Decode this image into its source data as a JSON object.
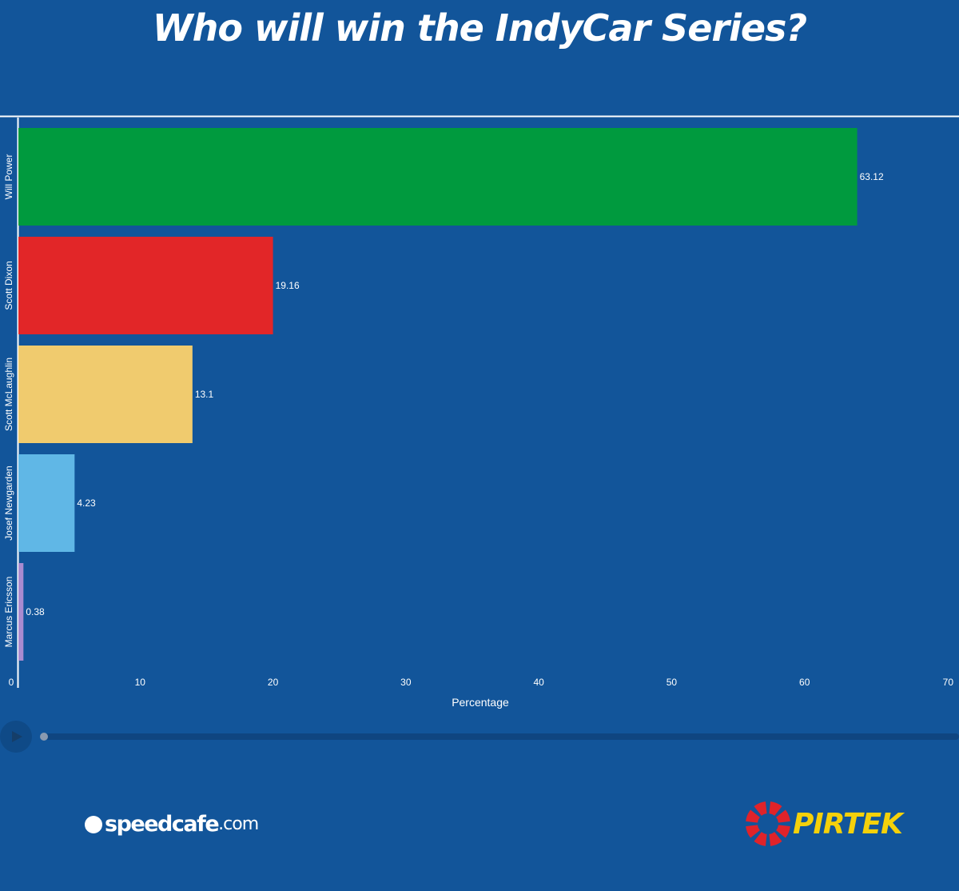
{
  "chart_data": {
    "type": "bar",
    "orientation": "horizontal",
    "title": "Who will win the IndyCar Series?",
    "xlabel": "Percentage",
    "ylabel": "",
    "xlim": [
      0,
      70
    ],
    "xticks": [
      0,
      10,
      20,
      30,
      40,
      50,
      60,
      70
    ],
    "grid": false,
    "legend": "none",
    "categories": [
      "Will Power",
      "Scott Dixon",
      "Scott McLaughlin",
      "Josef Newgarden",
      "Marcus Ericsson"
    ],
    "values": [
      63.12,
      19.16,
      13.1,
      4.23,
      0.38
    ],
    "value_labels": [
      "63.12",
      "19.16",
      "13.1",
      "4.23",
      "0.38"
    ],
    "colors": [
      "#009a3e",
      "#e22628",
      "#f0cb6e",
      "#60b7e6",
      "#a98bd0"
    ]
  },
  "player": {
    "play_icon": "play-icon",
    "progress": 0
  },
  "logos": {
    "speedcafe": {
      "word": "speedcafe",
      "tld": ".com"
    },
    "pirtek": {
      "word": "PIRTEK"
    }
  },
  "colors": {
    "background": "#12559a",
    "text": "#ffffff",
    "pirtek_yellow": "#f5d10a",
    "pirtek_red": "#e0232a"
  }
}
